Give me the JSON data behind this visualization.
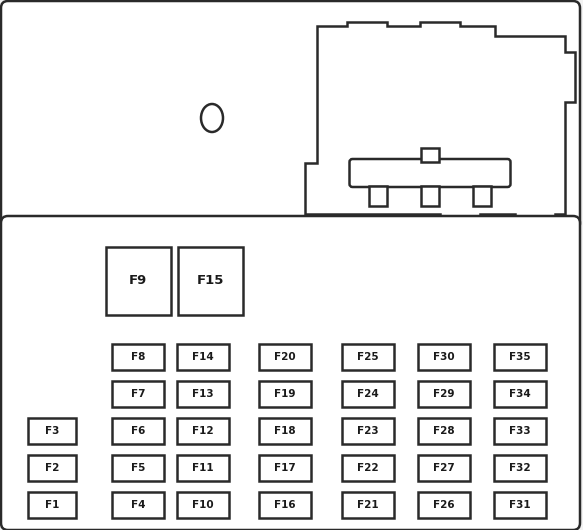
{
  "bg_color": "#f2f2f2",
  "bg_inner": "#ffffff",
  "border_color": "#2a2a2a",
  "fuse_color": "#ffffff",
  "fuse_border": "#2a2a2a",
  "text_color": "#1a1a1a",
  "fig_width": 5.83,
  "fig_height": 5.3,
  "small_fuses": [
    {
      "label": "F8",
      "col": 1,
      "row": 4
    },
    {
      "label": "F14",
      "col": 2,
      "row": 4
    },
    {
      "label": "F20",
      "col": 3,
      "row": 4
    },
    {
      "label": "F25",
      "col": 4,
      "row": 4
    },
    {
      "label": "F30",
      "col": 5,
      "row": 4
    },
    {
      "label": "F35",
      "col": 6,
      "row": 4
    },
    {
      "label": "F7",
      "col": 1,
      "row": 3
    },
    {
      "label": "F13",
      "col": 2,
      "row": 3
    },
    {
      "label": "F19",
      "col": 3,
      "row": 3
    },
    {
      "label": "F24",
      "col": 4,
      "row": 3
    },
    {
      "label": "F29",
      "col": 5,
      "row": 3
    },
    {
      "label": "F34",
      "col": 6,
      "row": 3
    },
    {
      "label": "F6",
      "col": 1,
      "row": 2
    },
    {
      "label": "F12",
      "col": 2,
      "row": 2
    },
    {
      "label": "F18",
      "col": 3,
      "row": 2
    },
    {
      "label": "F23",
      "col": 4,
      "row": 2
    },
    {
      "label": "F28",
      "col": 5,
      "row": 2
    },
    {
      "label": "F33",
      "col": 6,
      "row": 2
    },
    {
      "label": "F5",
      "col": 1,
      "row": 1
    },
    {
      "label": "F11",
      "col": 2,
      "row": 1
    },
    {
      "label": "F17",
      "col": 3,
      "row": 1
    },
    {
      "label": "F22",
      "col": 4,
      "row": 1
    },
    {
      "label": "F27",
      "col": 5,
      "row": 1
    },
    {
      "label": "F32",
      "col": 6,
      "row": 1
    },
    {
      "label": "F4",
      "col": 1,
      "row": 0
    },
    {
      "label": "F10",
      "col": 2,
      "row": 0
    },
    {
      "label": "F16",
      "col": 3,
      "row": 0
    },
    {
      "label": "F21",
      "col": 4,
      "row": 0
    },
    {
      "label": "F26",
      "col": 5,
      "row": 0
    },
    {
      "label": "F31",
      "col": 6,
      "row": 0
    }
  ],
  "left_fuses": [
    {
      "label": "F3",
      "row": 2
    },
    {
      "label": "F2",
      "row": 1
    },
    {
      "label": "F1",
      "row": 0
    }
  ],
  "large_fuses": [
    {
      "label": "F9",
      "idx": 0
    },
    {
      "label": "F15",
      "idx": 1
    }
  ]
}
